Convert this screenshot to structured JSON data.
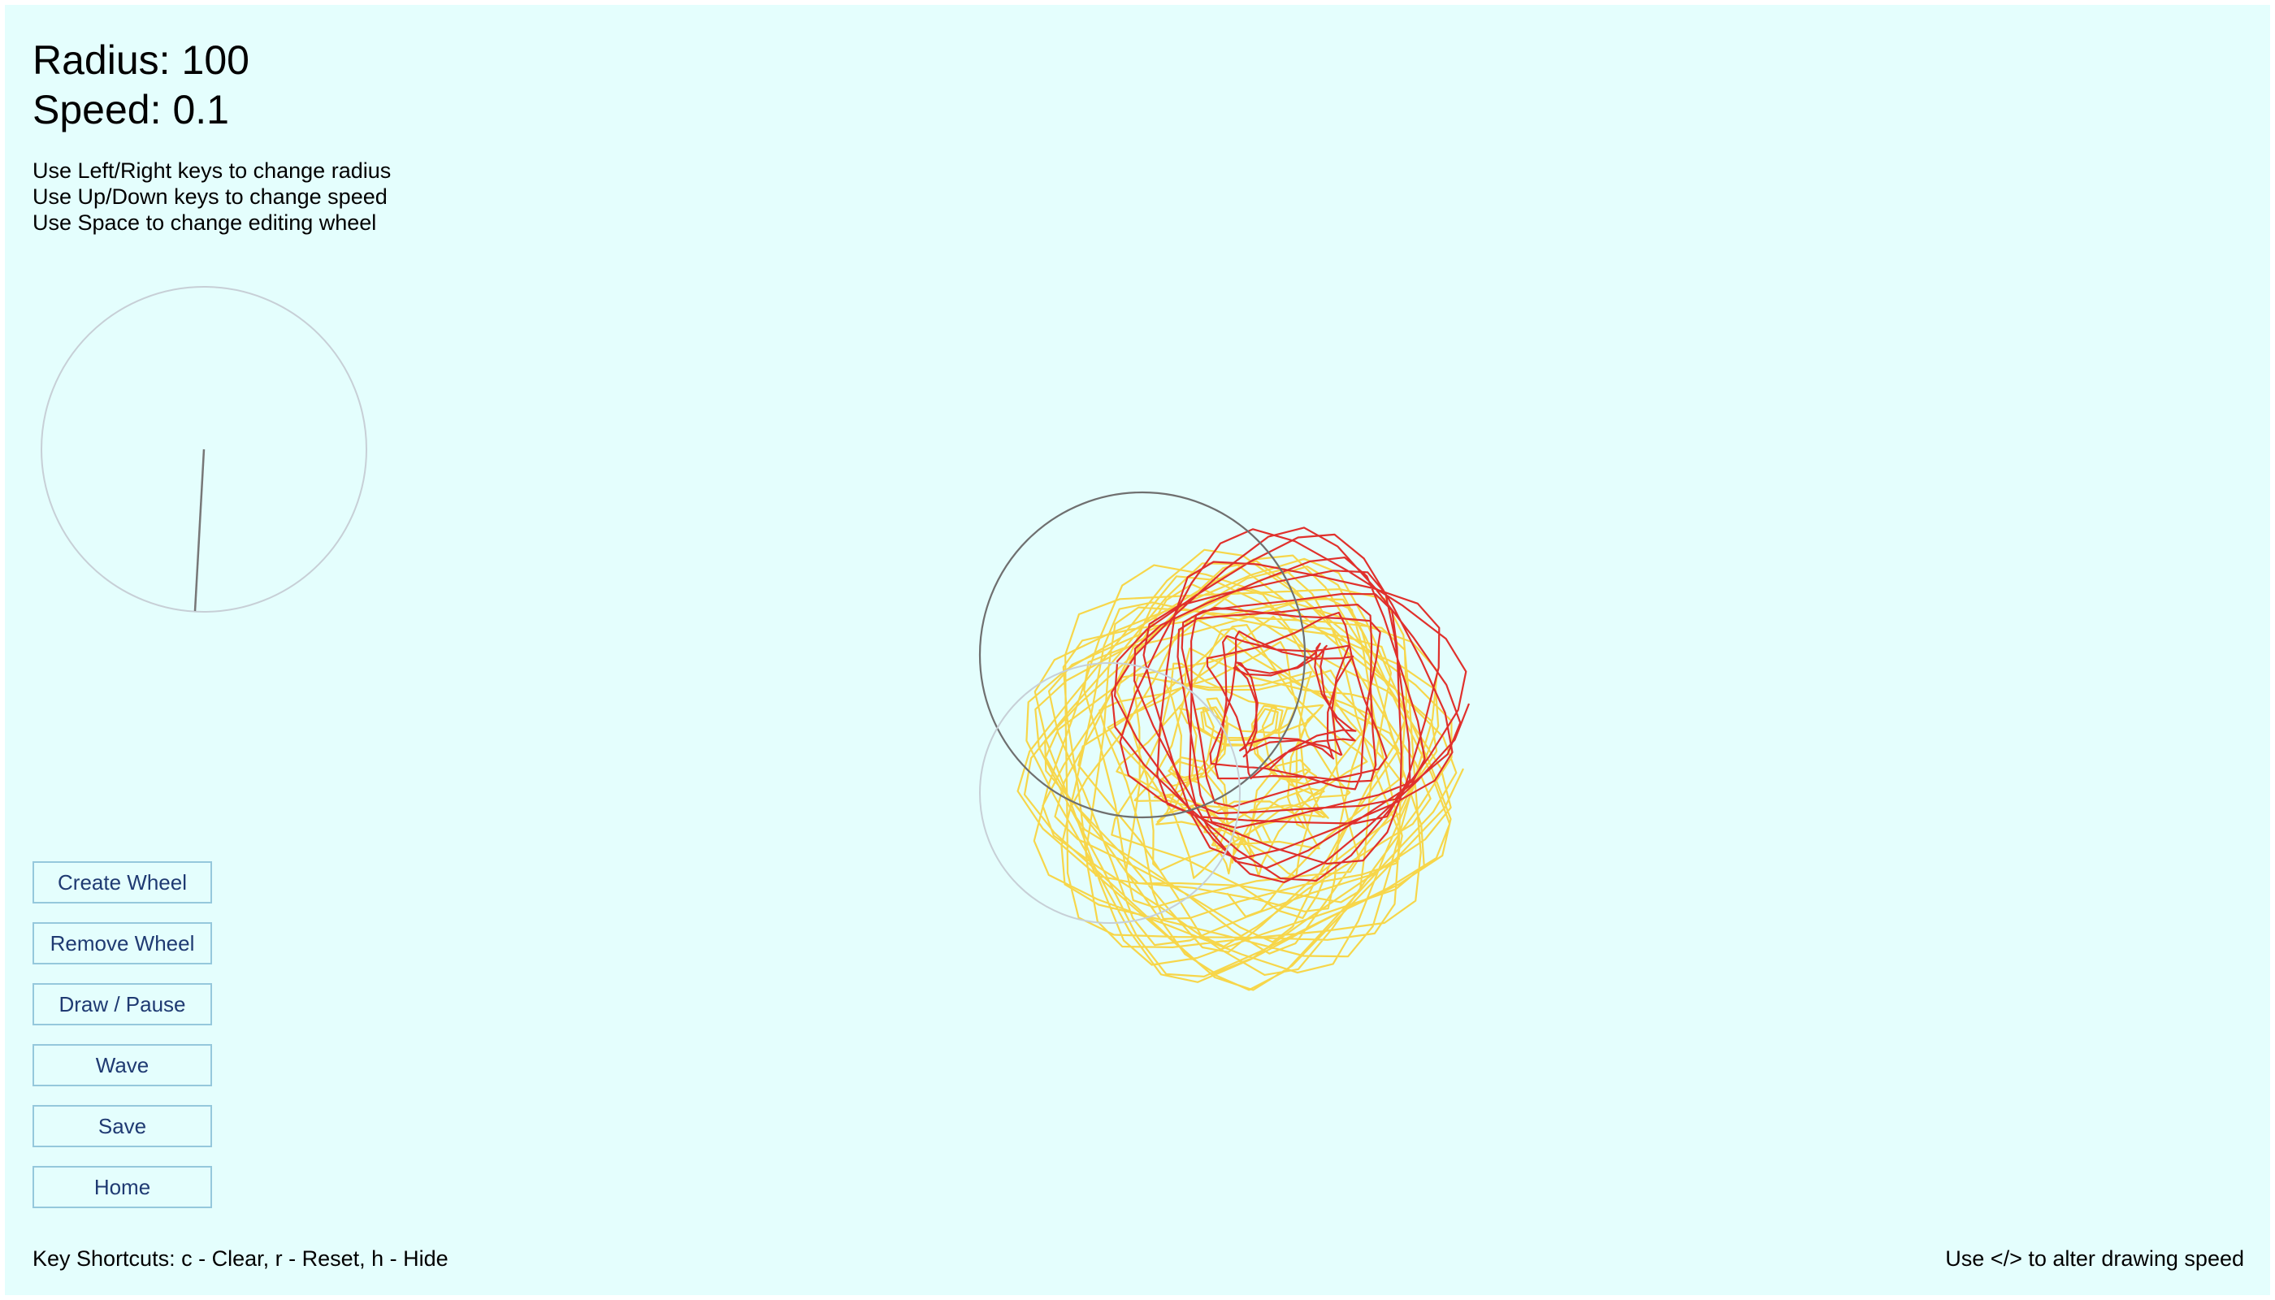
{
  "status": {
    "radius_label": "Radius:",
    "radius_value": "100",
    "speed_label": "Speed:",
    "speed_value": "0.1"
  },
  "instructions": [
    "Use Left/Right keys to change radius",
    "Use Up/Down keys to change speed",
    "Use Space to change editing wheel"
  ],
  "buttons": {
    "create_wheel": "Create Wheel",
    "remove_wheel": "Remove Wheel",
    "draw_pause": "Draw / Pause",
    "wave": "Wave",
    "save": "Save",
    "home": "Home"
  },
  "footer": {
    "shortcuts": "Key Shortcuts: c - Clear, r - Reset, h - Hide",
    "speed_hint": "Use </> to alter drawing speed"
  },
  "colors": {
    "background": "#e4fefd",
    "button_border": "#95c8dc",
    "button_text": "#1f3a72",
    "trace_red": "#e0302c",
    "trace_yellow": "#f7d64a",
    "wheel_outline": "#6f6f6f",
    "wheel_outline_faint": "#c7cfd6"
  }
}
